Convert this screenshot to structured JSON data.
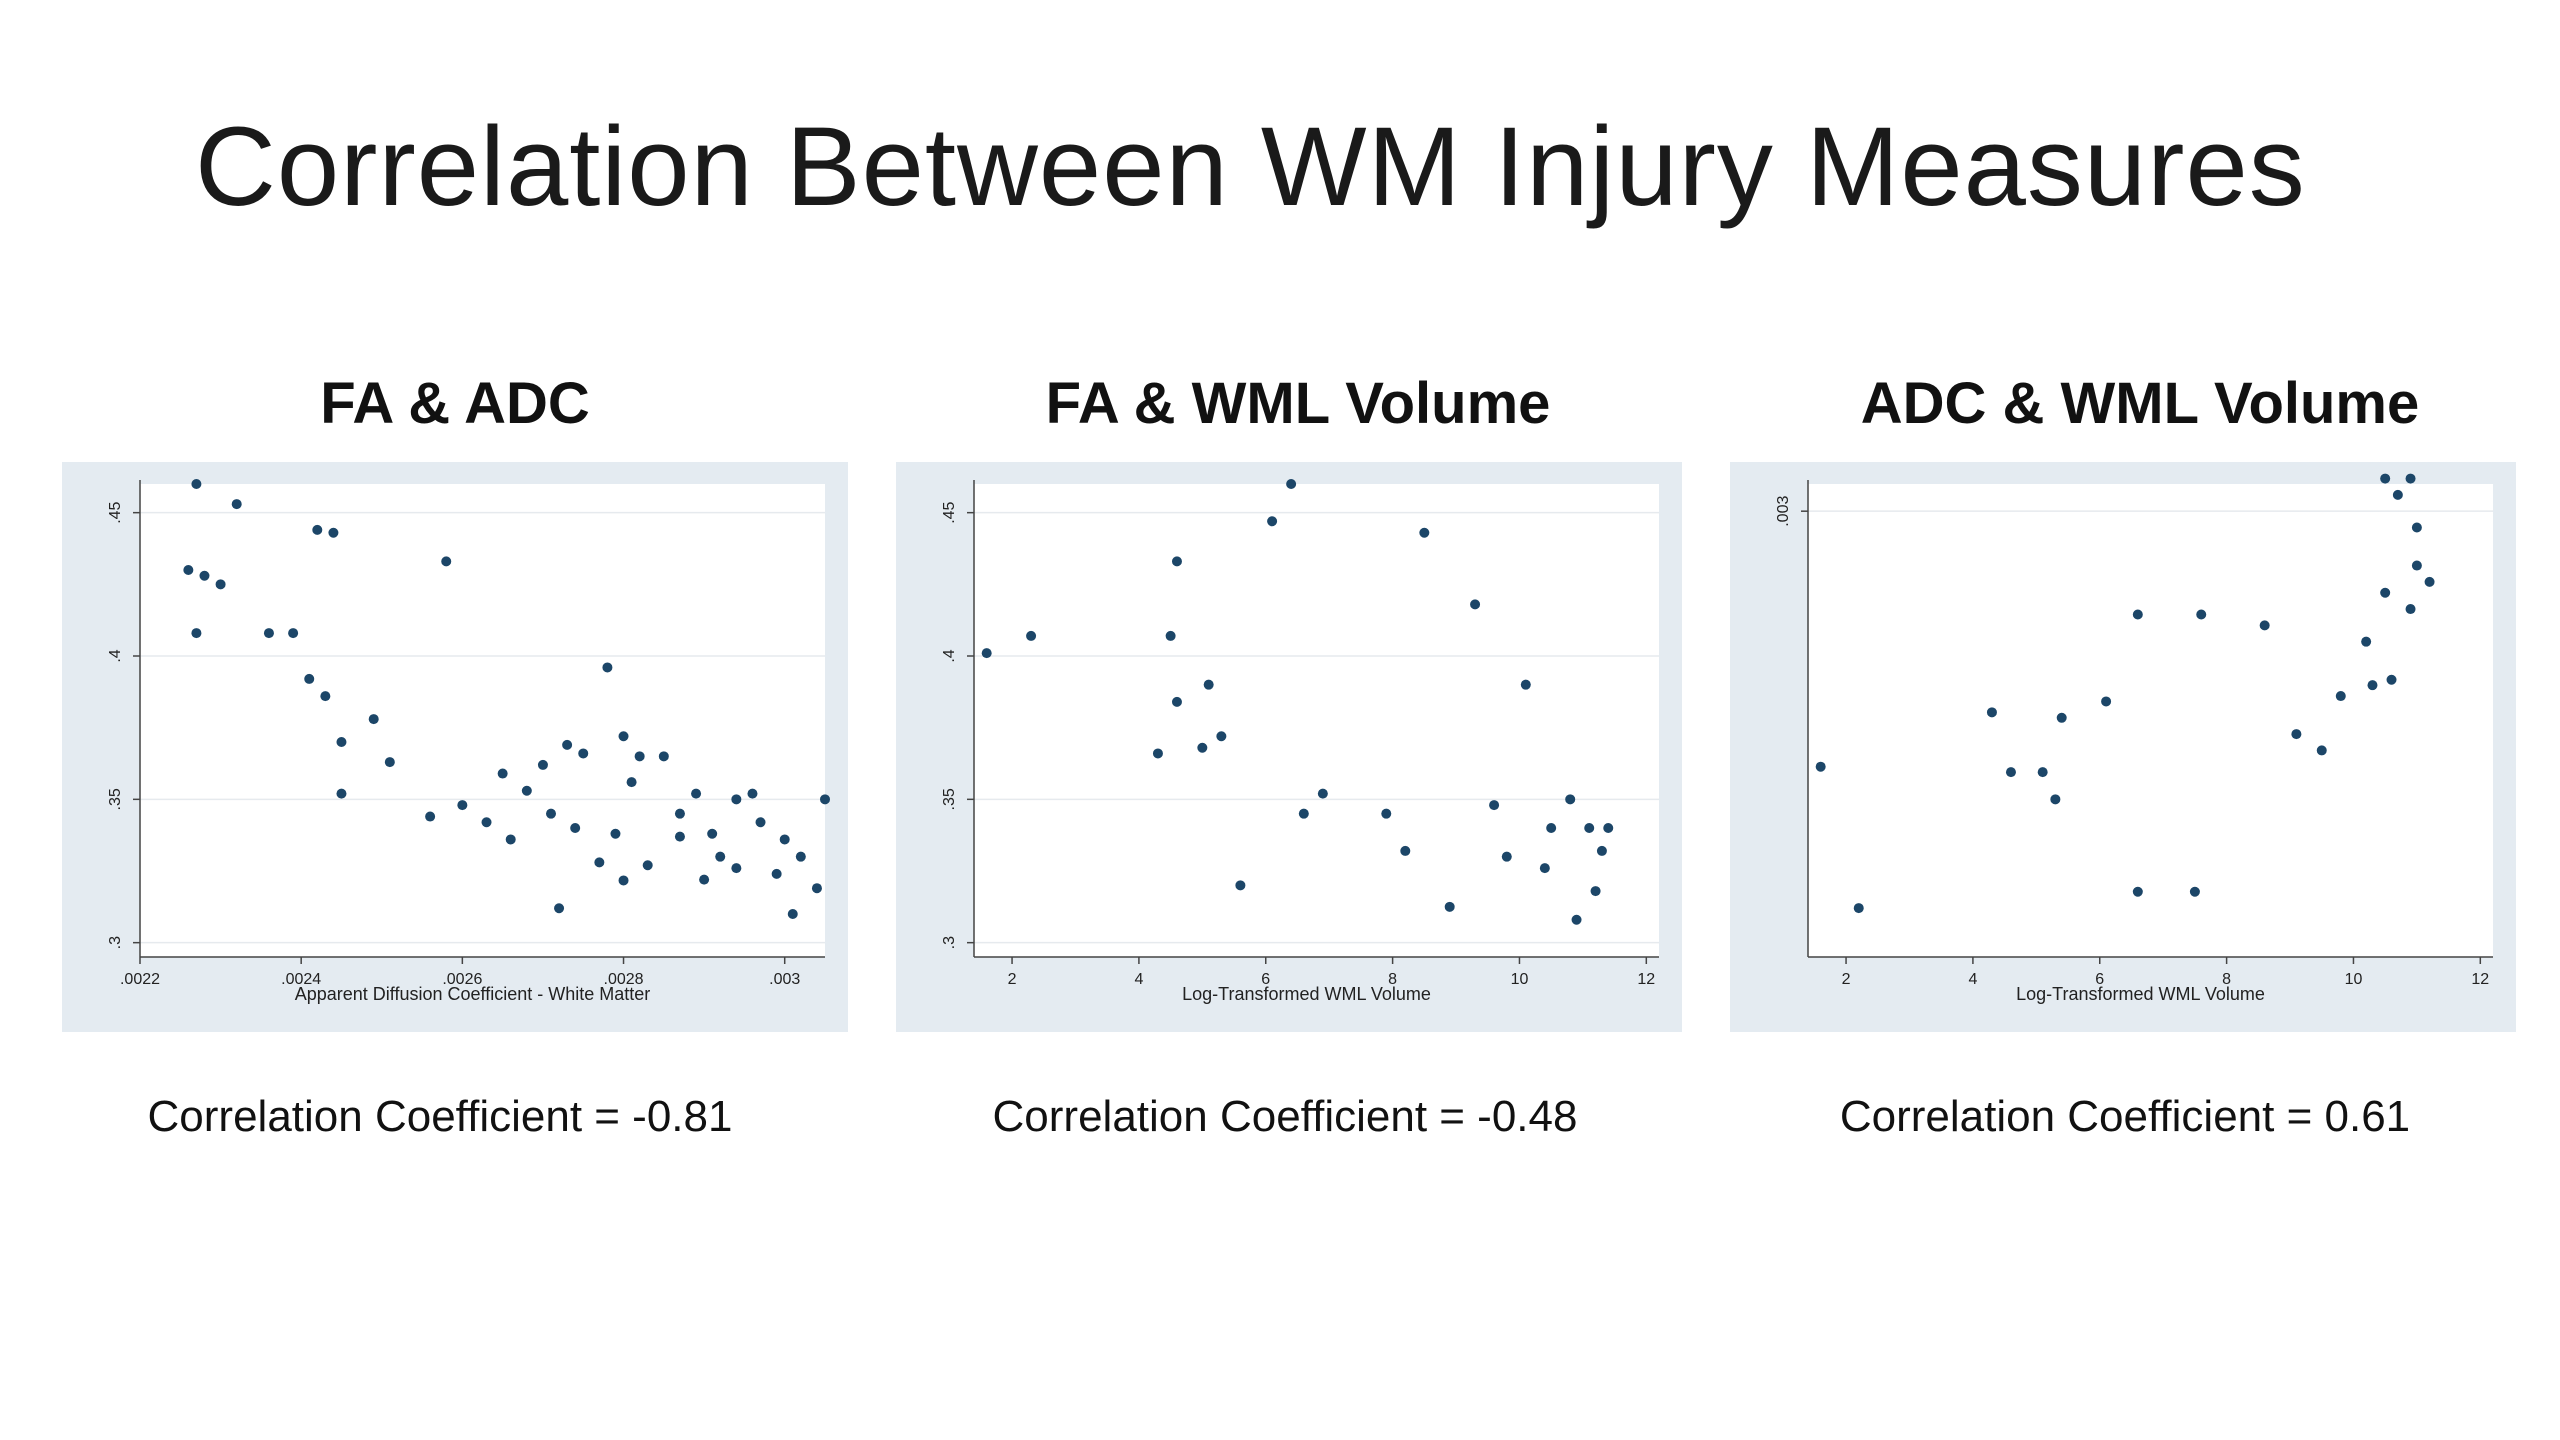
{
  "slide": {
    "title": "Correlation Between WM Injury Measures"
  },
  "colors": {
    "point": "#1c4668",
    "frame_bg": "#e4ebf1",
    "plot_bg": "#ffffff",
    "grid": "#e6eaee"
  },
  "chart_data": [
    {
      "type": "scatter",
      "title": "FA & ADC",
      "xlabel": "Apparent Diffusion Coefficient - White Matter",
      "ylabel": "",
      "xlim": [
        0.0022,
        0.00305
      ],
      "ylim": [
        0.295,
        0.46
      ],
      "xticks": [
        0.0022,
        0.0024,
        0.0026,
        0.0028,
        0.003
      ],
      "xtick_labels": [
        ".0022",
        ".0024",
        ".0026",
        ".0028",
        ".003"
      ],
      "yticks": [
        0.3,
        0.35,
        0.4,
        0.45
      ],
      "ytick_labels": [
        ".3",
        ".35",
        ".4",
        ".45"
      ],
      "grid": true,
      "legend": "none",
      "correlation": -0.81,
      "points": [
        [
          0.00227,
          0.46
        ],
        [
          0.00232,
          0.453
        ],
        [
          0.00226,
          0.43
        ],
        [
          0.00228,
          0.428
        ],
        [
          0.0023,
          0.425
        ],
        [
          0.00227,
          0.408
        ],
        [
          0.00236,
          0.408
        ],
        [
          0.00239,
          0.408
        ],
        [
          0.00242,
          0.444
        ],
        [
          0.00244,
          0.443
        ],
        [
          0.00258,
          0.433
        ],
        [
          0.00241,
          0.392
        ],
        [
          0.00243,
          0.386
        ],
        [
          0.00249,
          0.378
        ],
        [
          0.00245,
          0.37
        ],
        [
          0.00251,
          0.363
        ],
        [
          0.00245,
          0.352
        ],
        [
          0.00256,
          0.344
        ],
        [
          0.0026,
          0.348
        ],
        [
          0.00265,
          0.359
        ],
        [
          0.00268,
          0.353
        ],
        [
          0.0027,
          0.362
        ],
        [
          0.00273,
          0.369
        ],
        [
          0.00275,
          0.366
        ],
        [
          0.00278,
          0.396
        ],
        [
          0.0028,
          0.372
        ],
        [
          0.00282,
          0.365
        ],
        [
          0.00281,
          0.356
        ],
        [
          0.00285,
          0.365
        ],
        [
          0.00287,
          0.345
        ],
        [
          0.00289,
          0.352
        ],
        [
          0.00291,
          0.338
        ],
        [
          0.00292,
          0.33
        ],
        [
          0.00294,
          0.326
        ],
        [
          0.00294,
          0.35
        ],
        [
          0.00296,
          0.352
        ],
        [
          0.00297,
          0.342
        ],
        [
          0.003,
          0.336
        ],
        [
          0.00302,
          0.33
        ],
        [
          0.00299,
          0.324
        ],
        [
          0.00301,
          0.31
        ],
        [
          0.00304,
          0.319
        ],
        [
          0.00305,
          0.35
        ],
        [
          0.0029,
          0.322
        ],
        [
          0.00287,
          0.337
        ],
        [
          0.00283,
          0.327
        ],
        [
          0.00279,
          0.338
        ],
        [
          0.00277,
          0.328
        ],
        [
          0.00274,
          0.34
        ],
        [
          0.00271,
          0.345
        ],
        [
          0.00266,
          0.336
        ],
        [
          0.00263,
          0.342
        ],
        [
          0.00272,
          0.312
        ],
        [
          0.0028,
          0.3217
        ]
      ]
    },
    {
      "type": "scatter",
      "title": "FA & WML Volume",
      "xlabel": "Log-Transformed WML Volume",
      "ylabel": "",
      "xlim": [
        1.4,
        12.2
      ],
      "ylim": [
        0.295,
        0.46
      ],
      "xticks": [
        2,
        4,
        6,
        8,
        10,
        12
      ],
      "xtick_labels": [
        "2",
        "4",
        "6",
        "8",
        "10",
        "12"
      ],
      "yticks": [
        0.3,
        0.35,
        0.4,
        0.45
      ],
      "ytick_labels": [
        ".3",
        ".35",
        ".4",
        ".45"
      ],
      "grid": true,
      "legend": "none",
      "correlation": -0.48,
      "points": [
        [
          1.6,
          0.401
        ],
        [
          2.3,
          0.407
        ],
        [
          4.3,
          0.366
        ],
        [
          4.6,
          0.384
        ],
        [
          4.5,
          0.407
        ],
        [
          4.6,
          0.433
        ],
        [
          5.1,
          0.39
        ],
        [
          5.6,
          0.32
        ],
        [
          6.4,
          0.46
        ],
        [
          6.1,
          0.447
        ],
        [
          6.6,
          0.345
        ],
        [
          7.9,
          0.345
        ],
        [
          8.5,
          0.443
        ],
        [
          9.3,
          0.418
        ],
        [
          8.9,
          0.3125
        ],
        [
          9.8,
          0.33
        ],
        [
          10.1,
          0.39
        ],
        [
          10.5,
          0.34
        ],
        [
          10.9,
          0.308
        ],
        [
          11.2,
          0.318
        ],
        [
          11.3,
          0.332
        ],
        [
          11.1,
          0.34
        ],
        [
          11.4,
          0.34
        ],
        [
          10.8,
          0.35
        ],
        [
          10.4,
          0.326
        ],
        [
          5.3,
          0.372
        ],
        [
          5.0,
          0.368
        ],
        [
          9.6,
          0.348
        ],
        [
          8.2,
          0.332
        ],
        [
          6.9,
          0.352
        ]
      ]
    },
    {
      "type": "scatter",
      "title": "ADC & WML Volume",
      "xlabel": "Log-Transformed WML Volume",
      "ylabel": "",
      "xlim": [
        1.4,
        12.2
      ],
      "ylim": [
        0.00218,
        0.00305
      ],
      "xticks": [
        2,
        4,
        6,
        8,
        10,
        12
      ],
      "xtick_labels": [
        "2",
        "4",
        "6",
        "8",
        "10",
        "12"
      ],
      "yticks": [
        0.003
      ],
      "ytick_labels": [
        ".003"
      ],
      "grid": true,
      "legend": "none",
      "correlation": 0.61,
      "points": [
        [
          1.6,
          0.00253
        ],
        [
          2.2,
          0.00227
        ],
        [
          4.3,
          0.00263
        ],
        [
          5.1,
          0.00252
        ],
        [
          5.4,
          0.00262
        ],
        [
          6.1,
          0.00265
        ],
        [
          6.6,
          0.00281
        ],
        [
          7.6,
          0.00281
        ],
        [
          8.6,
          0.00279
        ],
        [
          6.6,
          0.0023
        ],
        [
          7.5,
          0.0023
        ],
        [
          10.5,
          0.00306
        ],
        [
          10.9,
          0.00306
        ],
        [
          10.7,
          0.00303
        ],
        [
          11.0,
          0.00297
        ],
        [
          11.2,
          0.00287
        ],
        [
          11.0,
          0.0029
        ],
        [
          10.5,
          0.00285
        ],
        [
          10.2,
          0.00276
        ],
        [
          10.9,
          0.00282
        ],
        [
          9.8,
          0.00266
        ],
        [
          10.3,
          0.00268
        ],
        [
          10.6,
          0.00269
        ],
        [
          4.6,
          0.00252
        ],
        [
          5.3,
          0.00247
        ],
        [
          9.1,
          0.00259
        ],
        [
          9.5,
          0.00256
        ]
      ]
    }
  ],
  "panels": [
    {
      "coef_text": "Correlation Coefficient = -0.81"
    },
    {
      "coef_text": "Correlation Coefficient = -0.48"
    },
    {
      "coef_text": "Correlation Coefficient = 0.61"
    }
  ]
}
